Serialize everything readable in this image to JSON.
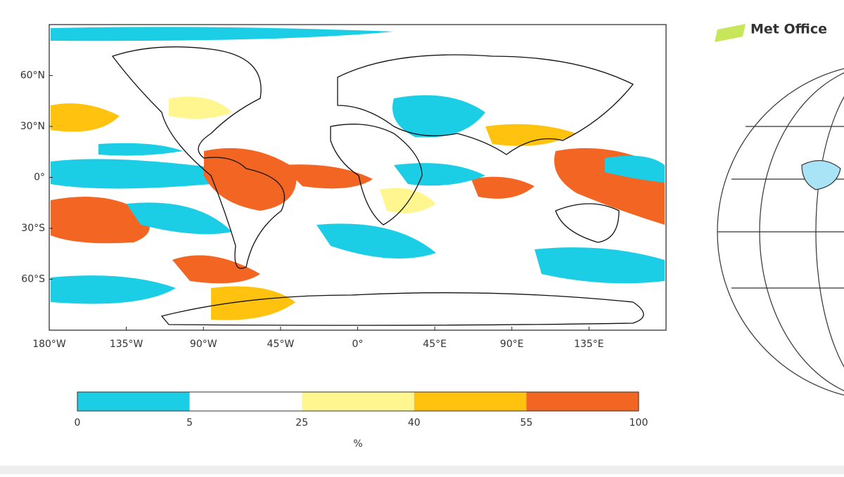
{
  "logo": "Met Office",
  "map": {
    "xlim": [
      -180,
      180
    ],
    "ylim": [
      -90,
      90
    ],
    "xticks": [
      {
        "value": -180,
        "label": "180°W"
      },
      {
        "value": -135,
        "label": "135°W"
      },
      {
        "value": -90,
        "label": "90°W"
      },
      {
        "value": -45,
        "label": "45°W"
      },
      {
        "value": 0,
        "label": "0°"
      },
      {
        "value": 45,
        "label": "45°E"
      },
      {
        "value": 90,
        "label": "90°E"
      },
      {
        "value": 135,
        "label": "135°E"
      }
    ],
    "yticks": [
      {
        "value": 60,
        "label": "60°N"
      },
      {
        "value": 30,
        "label": "30°N"
      },
      {
        "value": 0,
        "label": "0°"
      },
      {
        "value": -30,
        "label": "30°S"
      },
      {
        "value": -60,
        "label": "60°S"
      }
    ]
  },
  "colorbar": {
    "bounds": [
      0,
      5,
      25,
      40,
      55,
      100
    ],
    "colors": [
      "#1ccde6",
      "#ffffff",
      "#fff68f",
      "#ffc20e",
      "#f26522"
    ],
    "label": "%"
  }
}
